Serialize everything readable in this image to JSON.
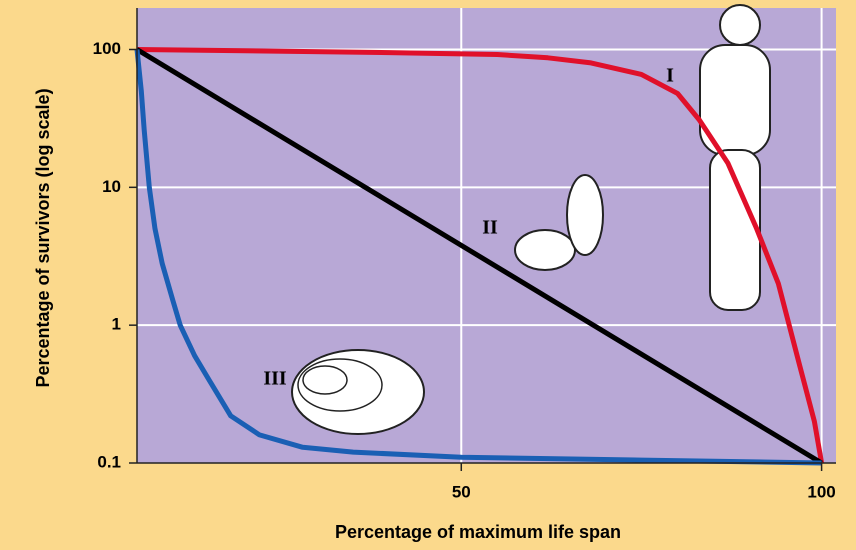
{
  "chart_data": {
    "type": "line",
    "xlabel": "Percentage of maximum life span",
    "ylabel": "Percentage of survivors (log scale)",
    "xlim": [
      5,
      102
    ],
    "xticks": [
      50,
      100
    ],
    "ylim": [
      0.1,
      200
    ],
    "yticks": [
      0.1,
      1,
      10,
      100
    ],
    "log_y": true,
    "grid": true,
    "annotations": [
      "I",
      "II",
      "III"
    ],
    "series": [
      {
        "color": "#e0102a",
        "x": [
          5,
          20,
          40,
          55,
          62,
          68,
          75,
          80,
          83,
          87,
          91,
          94,
          97,
          99,
          100
        ],
        "values": [
          100,
          98,
          95,
          92,
          87,
          80,
          66,
          48,
          31,
          15,
          5,
          2,
          0.5,
          0.2,
          0.1
        ]
      },
      {
        "color": "#000000",
        "x": [
          5,
          100
        ],
        "values": [
          100,
          0.1
        ]
      },
      {
        "color": "#1a5fb4",
        "x": [
          5,
          5.6,
          6,
          6.7,
          7.5,
          8.5,
          10,
          11,
          13,
          15,
          18,
          22,
          28,
          35,
          50,
          75,
          100
        ],
        "values": [
          100,
          50,
          26,
          10,
          5,
          2.8,
          1.5,
          1,
          0.6,
          0.4,
          0.22,
          0.16,
          0.13,
          0.12,
          0.11,
          0.105,
          0.1
        ]
      }
    ]
  }
}
